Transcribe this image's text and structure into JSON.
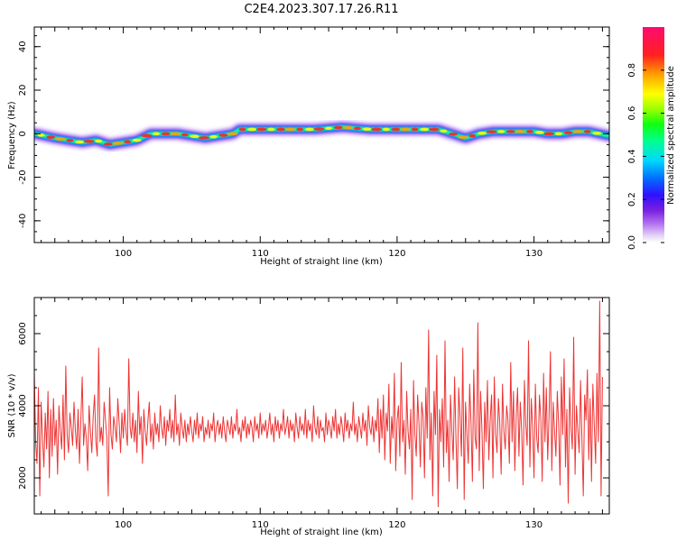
{
  "title": "C2E4.2023.307.17.26.R11",
  "colorbar": {
    "label": "Normalized spectral amplitude",
    "ticks": [
      "0.0",
      "0.2",
      "0.4",
      "0.6",
      "0.8"
    ],
    "tick_values": [
      0.0,
      0.2,
      0.4,
      0.6,
      0.8
    ],
    "range": [
      0.0,
      1.0
    ]
  },
  "chart_data": [
    {
      "type": "heatmap",
      "xlabel": "Height of straight line (km)",
      "ylabel": "Frequency (Hz)",
      "xlim": [
        93.5,
        135.5
      ],
      "ylim": [
        -50,
        49
      ],
      "xticks": [
        "100",
        "110",
        "120",
        "130"
      ],
      "xtick_values": [
        100,
        110,
        120,
        130
      ],
      "yticks": [
        "40",
        "20",
        "0",
        "-20",
        "-40"
      ],
      "ytick_values": [
        40,
        20,
        0,
        -20,
        -40
      ],
      "series": [
        {
          "x": [
            93.5,
            95,
            96,
            97,
            98,
            99,
            100,
            101,
            102,
            103,
            104,
            105,
            106,
            107,
            108,
            108.5,
            110,
            112,
            114,
            116,
            118,
            120,
            122,
            123,
            124,
            125,
            126,
            127,
            128,
            130,
            131,
            132,
            133,
            134,
            135.5
          ],
          "y": [
            0,
            -2,
            -3,
            -4,
            -3,
            -5,
            -4,
            -3,
            0,
            0,
            0,
            -1,
            -2,
            -1,
            0,
            2,
            2,
            2,
            2,
            3,
            2,
            2,
            2,
            2,
            0,
            -2,
            0,
            1,
            1,
            1,
            0,
            0,
            1,
            1,
            -1
          ]
        }
      ]
    },
    {
      "type": "line",
      "xlabel": "Height of straight line (km)",
      "ylabel": "SNR (10 * v/v)",
      "xlim": [
        93.5,
        135.5
      ],
      "ylim": [
        1000,
        7000
      ],
      "xticks": [
        "100",
        "110",
        "120",
        "130"
      ],
      "xtick_values": [
        100,
        110,
        120,
        130
      ],
      "yticks": [
        "6000",
        "4000",
        "2000"
      ],
      "ytick_values": [
        6000,
        4000,
        2000
      ],
      "color": "#ee3333",
      "series": [
        {
          "x_start": 93.5,
          "x_step": 0.1,
          "values": [
            4900,
            3000,
            2400,
            4500,
            1500,
            4100,
            3100,
            2300,
            3800,
            2800,
            4400,
            2000,
            3900,
            2600,
            4200,
            2900,
            3600,
            2100,
            4000,
            3300,
            2800,
            4300,
            2500,
            5100,
            3200,
            2700,
            3800,
            3400,
            2900,
            4100,
            3300,
            2800,
            3900,
            2400,
            3600,
            4800,
            2900,
            3500,
            3100,
            2200,
            4000,
            3300,
            2700,
            3700,
            4300,
            3000,
            2600,
            5600,
            3000,
            3400,
            2900,
            4100,
            3600,
            3100,
            1500,
            4500,
            3200,
            2800,
            3700,
            3400,
            3000,
            4200,
            3500,
            2700,
            3800,
            3100,
            3900,
            3300,
            2900,
            5300,
            3400,
            3100,
            3800,
            3000,
            3600,
            2700,
            4400,
            3200,
            3700,
            2400,
            3900,
            3300,
            2900,
            3600,
            4100,
            3000,
            3500,
            2800,
            3800,
            3200,
            3500,
            3000,
            4000,
            3400,
            3100,
            3700,
            2900,
            3600,
            3300,
            3900,
            3100,
            3600,
            3000,
            4300,
            3200,
            3500,
            2900,
            3800,
            3400,
            3100,
            3600,
            3000,
            3500,
            3200,
            3700,
            3300,
            3000,
            3600,
            3200,
            3800,
            3100,
            3500,
            3300,
            3700,
            3000,
            3400,
            3200,
            3600,
            3100,
            3500,
            3300,
            3800,
            3000,
            3400,
            3600,
            3200,
            3500,
            3100,
            3700,
            3300,
            3000,
            3600,
            3400,
            3200,
            3700,
            3100,
            3500,
            3300,
            3900,
            3200,
            3400,
            3000,
            3600,
            3300,
            3700,
            3100,
            3500,
            3200,
            3600,
            3400,
            3000,
            3700,
            3300,
            3500,
            3100,
            3800,
            3200,
            3500,
            3300,
            3600,
            3100,
            3400,
            3800,
            3200,
            3500,
            3000,
            3700,
            3300,
            3600,
            3100,
            3500,
            3300,
            3900,
            3200,
            3400,
            3700,
            3100,
            3600,
            3300,
            3500,
            3000,
            3800,
            3400,
            3100,
            3700,
            3300,
            3500,
            3200,
            3900,
            3100,
            3600,
            3300,
            3500,
            3000,
            4000,
            3400,
            3200,
            3700,
            3100,
            3600,
            3300,
            3400,
            3000,
            3800,
            3200,
            3600,
            3400,
            3100,
            3700,
            3300,
            3900,
            3100,
            3500,
            3200,
            3700,
            3400,
            3000,
            3800,
            3300,
            3600,
            3100,
            3500,
            3300,
            4100,
            3200,
            3500,
            3000,
            3700,
            3400,
            3100,
            3800,
            3300,
            3600,
            2900,
            4000,
            3400,
            3200,
            3700,
            3000,
            3600,
            3300,
            4200,
            2700,
            3900,
            3100,
            4300,
            2500,
            3800,
            3300,
            4600,
            2400,
            3700,
            3100,
            4900,
            2200,
            3600,
            4000,
            2600,
            5200,
            3000,
            3600,
            2100,
            4400,
            3300,
            2800,
            3900,
            1400,
            4700,
            3200,
            2600,
            4300,
            3500,
            2300,
            4100,
            3700,
            2000,
            4500,
            3100,
            6100,
            2500,
            3800,
            1500,
            4400,
            3200,
            5400,
            1200,
            3900,
            3000,
            4200,
            2300,
            5800,
            2700,
            3600,
            1900,
            4300,
            3300,
            2500,
            4800,
            3100,
            1700,
            4500,
            3700,
            2600,
            5600,
            1400,
            4100,
            3200,
            2400,
            4600,
            3500,
            1900,
            5000,
            3100,
            2800,
            6300,
            2200,
            4400,
            3300,
            1700,
            4100,
            3000,
            4700,
            2500,
            3600,
            4300,
            2000,
            4800,
            3200,
            2700,
            4200,
            3500,
            2100,
            4600,
            3300,
            2800,
            4000,
            3600,
            2400,
            5200,
            3000,
            4400,
            2200,
            3700,
            4500,
            2600,
            4100,
            3300,
            1800,
            4700,
            3500,
            2900,
            5800,
            2300,
            4200,
            3400,
            2000,
            4600,
            3100,
            2700,
            4300,
            3600,
            1900,
            4900,
            3000,
            4500,
            2500,
            3700,
            5500,
            2200,
            4100,
            3300,
            2600,
            4400,
            3500,
            1800,
            4800,
            3200,
            5300,
            2300,
            3900,
            1300,
            4500,
            3400,
            2800,
            5900,
            2100,
            4000,
            3300,
            2700,
            4700,
            3100,
            1500,
            4300,
            3600,
            5000,
            2500,
            4200,
            1900,
            4600,
            3500,
            2400,
            4900,
            3000,
            6900,
            1500,
            4800
          ]
        }
      ]
    }
  ]
}
